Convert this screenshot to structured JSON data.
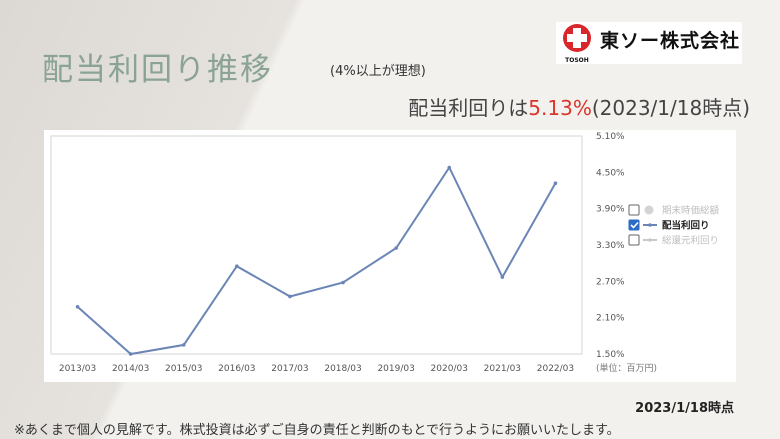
{
  "header": {
    "title": "配当利回り推移",
    "subtitle": "(4%以上が理想)",
    "headline_prefix": "配当利回りは",
    "headline_value": "5.13%",
    "headline_suffix": "(2023/1/18時点)"
  },
  "logo": {
    "name": "東ソー株式会社",
    "sub": "TOSOH"
  },
  "footer": {
    "asof": "2023/1/18時点",
    "disclaimer": "※あくまで個人の見解です。株式投資は必ずご自身の責任と判断のもとで行うようにお願いいたします。"
  },
  "colors": {
    "line": "#6b86b6",
    "accent": "#d9352b",
    "title": "#8aa394",
    "logo_red": "#d8262b"
  },
  "chart_data": {
    "type": "line",
    "categories": [
      "2013/03",
      "2014/03",
      "2015/03",
      "2016/03",
      "2017/03",
      "2018/03",
      "2019/03",
      "2020/03",
      "2021/03",
      "2022/03"
    ],
    "series": [
      {
        "name": "配当利回り",
        "values": [
          2.28,
          1.5,
          1.65,
          2.95,
          2.45,
          2.68,
          3.25,
          4.58,
          2.77,
          4.32
        ]
      }
    ],
    "ylim": [
      1.5,
      5.1
    ],
    "yticks": [
      "5.10%",
      "4.50%",
      "3.90%",
      "3.30%",
      "2.70%",
      "2.10%",
      "1.50%"
    ],
    "unit_label": "(単位：百万円)",
    "legend_position": "right",
    "legend": [
      {
        "label": "期末時価総額",
        "checked": false,
        "active": false
      },
      {
        "label": "配当利回り",
        "checked": true,
        "active": true
      },
      {
        "label": "総還元利回り",
        "checked": false,
        "active": false
      }
    ],
    "grid": false
  }
}
